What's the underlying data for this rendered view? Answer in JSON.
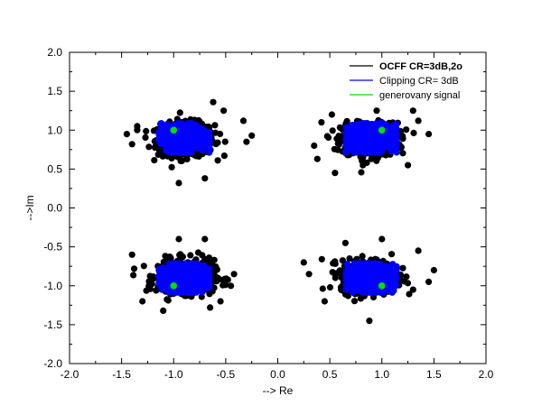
{
  "chart_data": {
    "type": "scatter",
    "title": "",
    "xlabel": "--> Re",
    "ylabel": "-->Im",
    "xlim": [
      -2.0,
      2.0
    ],
    "ylim": [
      -2.0,
      2.0
    ],
    "x_ticks": [
      "-2.0",
      "-1.5",
      "-1.0",
      "-0.5",
      "0.0",
      "0.5",
      "1.0",
      "1.5",
      "2.0"
    ],
    "y_ticks": [
      "-2.0",
      "-1.5",
      "-1.0",
      "-0.5",
      "0.0",
      "0.5",
      "1.0",
      "1.5",
      "2.0"
    ],
    "grid": false,
    "legend_position": "top-right",
    "legend": [
      {
        "label": "OCFF CR=3dB,2o",
        "color": "#000000",
        "bold": true
      },
      {
        "label": "Clipping CR= 3dB",
        "color": "#0000ff",
        "bold": false
      },
      {
        "label": "generovany signal",
        "color": "#00e000",
        "bold": false
      }
    ],
    "series": [
      {
        "name": "OCFF CR=3dB,2o",
        "color": "#000000",
        "description": "noisy clusters around the four QPSK constellation points, shifted slightly toward the origin",
        "cluster_centers": [
          [
            -0.88,
            0.88
          ],
          [
            0.88,
            0.88
          ],
          [
            -0.88,
            -0.88
          ],
          [
            0.88,
            -0.88
          ]
        ],
        "cluster_spread": [
          0.27,
          0.21
        ],
        "outlier_points": [
          [
            -1.4,
            0.82
          ],
          [
            -1.45,
            0.95
          ],
          [
            -0.3,
            0.85
          ],
          [
            -0.25,
            0.93
          ],
          [
            -0.62,
            1.36
          ],
          [
            -0.95,
            0.32
          ],
          [
            -0.7,
            0.38
          ],
          [
            -0.33,
            1.12
          ],
          [
            -1.35,
            1.05
          ],
          [
            -0.52,
            1.25
          ],
          [
            0.35,
            0.8
          ],
          [
            0.38,
            0.63
          ],
          [
            1.35,
            1.12
          ],
          [
            1.45,
            0.95
          ],
          [
            0.55,
            0.45
          ],
          [
            1.25,
            0.55
          ],
          [
            0.42,
            1.1
          ],
          [
            1.3,
            1.25
          ],
          [
            0.52,
            1.2
          ],
          [
            0.95,
            1.25
          ],
          [
            -1.38,
            -0.78
          ],
          [
            -1.4,
            -0.6
          ],
          [
            -0.42,
            -0.85
          ],
          [
            -0.45,
            -1.0
          ],
          [
            -1.3,
            -1.2
          ],
          [
            -0.55,
            -1.2
          ],
          [
            -0.95,
            -0.4
          ],
          [
            -0.7,
            -0.4
          ],
          [
            -1.1,
            -1.32
          ],
          [
            -0.65,
            -1.28
          ],
          [
            0.25,
            -0.7
          ],
          [
            0.3,
            -0.85
          ],
          [
            1.5,
            -0.8
          ],
          [
            1.45,
            -0.95
          ],
          [
            0.45,
            -1.2
          ],
          [
            0.88,
            -1.45
          ],
          [
            1.3,
            -1.05
          ],
          [
            0.65,
            -0.45
          ],
          [
            1.0,
            -0.4
          ],
          [
            1.35,
            -0.55
          ]
        ]
      },
      {
        "name": "Clipping CR= 3dB",
        "color": "#0000ff",
        "description": "dense clusters around the four constellation points",
        "cluster_centers": [
          [
            -0.9,
            0.9
          ],
          [
            0.9,
            0.9
          ],
          [
            -0.9,
            -0.9
          ],
          [
            0.9,
            -0.9
          ]
        ],
        "cluster_spread": [
          0.22,
          0.17
        ]
      },
      {
        "name": "generovany signal",
        "color": "#00e000",
        "points": [
          [
            -1.0,
            1.0
          ],
          [
            1.0,
            1.0
          ],
          [
            -1.0,
            -1.0
          ],
          [
            1.0,
            -1.0
          ]
        ]
      }
    ]
  }
}
